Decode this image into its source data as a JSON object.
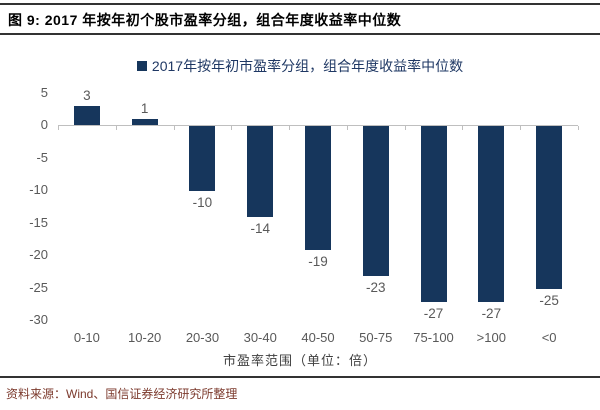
{
  "header": {
    "title": "图 9: 2017 年按年初个股市盈率分组，组合年度收益率中位数"
  },
  "legend": {
    "label": "2017年按年初市盈率分组，组合年度收益率中位数"
  },
  "chart_data": {
    "type": "bar",
    "title": "2017 年按年初个股市盈率分组，组合年度收益率中位数",
    "categories": [
      "0-10",
      "10-20",
      "20-30",
      "30-40",
      "40-50",
      "50-75",
      "75-100",
      ">100",
      "<0"
    ],
    "values": [
      3,
      1,
      -10,
      -14,
      -19,
      -23,
      -27,
      -27,
      -25
    ],
    "data_labels": [
      "3",
      "1",
      "-10",
      "-14",
      "-19",
      "-23",
      "-27",
      "-27",
      "-25"
    ],
    "xlabel": "市盈率范围（单位：倍）",
    "ylabel": "",
    "ylim": [
      -30,
      5
    ],
    "yticks": [
      5,
      0,
      -5,
      -10,
      -15,
      -20,
      -25,
      -30
    ],
    "grid": false,
    "legend_entry": "2017年按年初市盈率分组，组合年度收益率中位数",
    "legend_position": "top-center",
    "colors": {
      "bar": "#16365C",
      "legend_text": "#1F3864",
      "tick_label": "#595959",
      "axis_line": "#BFBFBF"
    }
  },
  "footer": {
    "source": "资料来源：Wind、国信证券经济研究所整理"
  }
}
